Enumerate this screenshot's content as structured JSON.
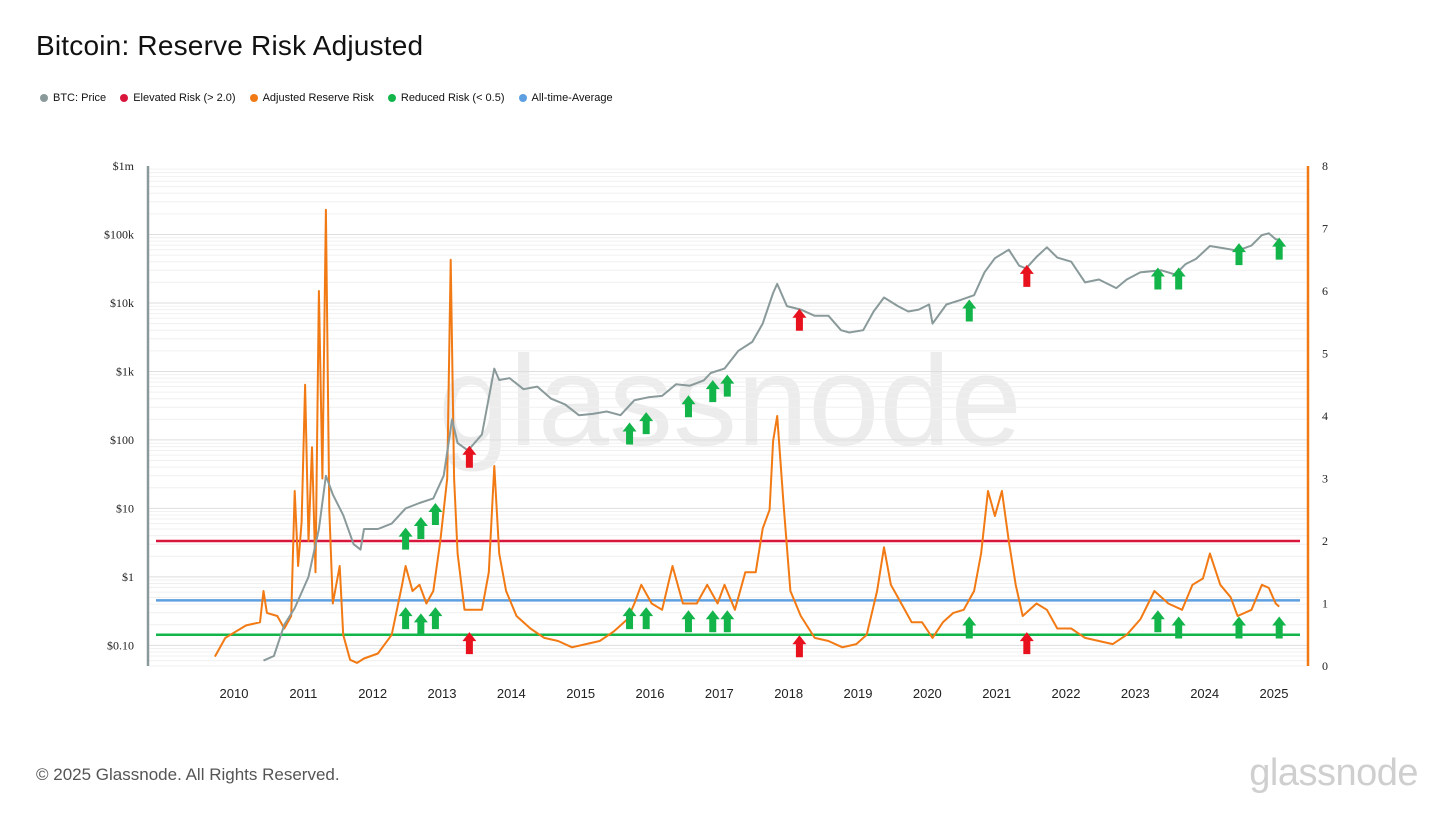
{
  "title": "Bitcoin: Reserve Risk Adjusted",
  "footer": {
    "copyright": "© 2025 Glassnode. All Rights Reserved.",
    "logo": "glassnode"
  },
  "watermark": "glassnode",
  "colors": {
    "price": "#8a9a9a",
    "elevated": "#d9163c",
    "reserve": "#f27a14",
    "reduced": "#13b54b",
    "average": "#5d9fe0",
    "up_arrow": "#13b54b",
    "down_arrow": "#e8121e",
    "grid": "#e8e8e8",
    "watermark": "#ececec"
  },
  "chart_data": {
    "type": "line",
    "title": "Bitcoin: Reserve Risk Adjusted",
    "legend_position": "top-left",
    "legend": [
      {
        "label": "BTC: Price",
        "color": "#8a9a9a"
      },
      {
        "label": "Elevated Risk (> 2.0)",
        "color": "#d9163c"
      },
      {
        "label": "Adjusted Reserve Risk",
        "color": "#f27a14"
      },
      {
        "label": "Reduced Risk (< 0.5)",
        "color": "#13b54b"
      },
      {
        "label": "All-time-Average",
        "color": "#5d9fe0"
      }
    ],
    "x_axis": {
      "scale": "time",
      "range": [
        2009.0,
        2025.5
      ],
      "ticks": [
        2010,
        2011,
        2012,
        2013,
        2014,
        2015,
        2016,
        2017,
        2018,
        2019,
        2020,
        2021,
        2022,
        2023,
        2024,
        2025
      ],
      "tick_labels": [
        "2010",
        "2011",
        "2012",
        "2013",
        "2014",
        "2015",
        "2016",
        "2017",
        "2018",
        "2019",
        "2020",
        "2021",
        "2022",
        "2023",
        "2024",
        "2025"
      ]
    },
    "y_left": {
      "scale": "log",
      "range": [
        0.05,
        1000000
      ],
      "ticks": [
        0.1,
        1,
        10,
        100,
        1000,
        10000,
        100000,
        1000000
      ],
      "tick_labels": [
        "$0.10",
        "$1",
        "$10",
        "$100",
        "$1k",
        "$10k",
        "$100k",
        "$1m"
      ]
    },
    "y_right": {
      "scale": "linear",
      "range": [
        0,
        8
      ],
      "ticks": [
        0,
        1,
        2,
        3,
        4,
        5,
        6,
        7,
        8
      ],
      "tick_labels": [
        "0",
        "1",
        "2",
        "3",
        "4",
        "5",
        "6",
        "7",
        "8"
      ]
    },
    "grid": true,
    "thresholds": [
      {
        "name": "Elevated Risk (> 2.0)",
        "value": 2.0,
        "axis": "right"
      },
      {
        "name": "Reduced Risk (< 0.5)",
        "value": 0.5,
        "axis": "right"
      },
      {
        "name": "All-time-Average",
        "value": 1.05,
        "axis": "right"
      }
    ],
    "series": [
      {
        "name": "BTC: Price",
        "axis": "left",
        "points": [
          [
            2010.55,
            0.06
          ],
          [
            2010.7,
            0.07
          ],
          [
            2010.85,
            0.2
          ],
          [
            2011.0,
            0.35
          ],
          [
            2011.2,
            1.0
          ],
          [
            2011.35,
            5
          ],
          [
            2011.45,
            30
          ],
          [
            2011.55,
            16
          ],
          [
            2011.7,
            8
          ],
          [
            2011.85,
            3
          ],
          [
            2011.95,
            2.5
          ],
          [
            2012.0,
            5
          ],
          [
            2012.2,
            5
          ],
          [
            2012.4,
            6
          ],
          [
            2012.6,
            10
          ],
          [
            2012.8,
            12
          ],
          [
            2013.0,
            14
          ],
          [
            2013.15,
            30
          ],
          [
            2013.27,
            200
          ],
          [
            2013.35,
            90
          ],
          [
            2013.5,
            70
          ],
          [
            2013.7,
            120
          ],
          [
            2013.88,
            1100
          ],
          [
            2013.95,
            750
          ],
          [
            2014.1,
            800
          ],
          [
            2014.3,
            550
          ],
          [
            2014.5,
            600
          ],
          [
            2014.7,
            400
          ],
          [
            2014.9,
            330
          ],
          [
            2015.1,
            230
          ],
          [
            2015.3,
            240
          ],
          [
            2015.5,
            260
          ],
          [
            2015.7,
            230
          ],
          [
            2015.9,
            380
          ],
          [
            2016.1,
            420
          ],
          [
            2016.3,
            440
          ],
          [
            2016.5,
            650
          ],
          [
            2016.7,
            620
          ],
          [
            2016.9,
            740
          ],
          [
            2017.0,
            950
          ],
          [
            2017.2,
            1100
          ],
          [
            2017.4,
            2000
          ],
          [
            2017.6,
            2700
          ],
          [
            2017.75,
            5000
          ],
          [
            2017.9,
            14000
          ],
          [
            2017.96,
            19000
          ],
          [
            2018.1,
            9000
          ],
          [
            2018.3,
            8000
          ],
          [
            2018.5,
            6500
          ],
          [
            2018.7,
            6500
          ],
          [
            2018.88,
            4000
          ],
          [
            2019.0,
            3700
          ],
          [
            2019.2,
            4000
          ],
          [
            2019.35,
            7500
          ],
          [
            2019.5,
            12000
          ],
          [
            2019.7,
            9000
          ],
          [
            2019.85,
            7500
          ],
          [
            2020.0,
            8000
          ],
          [
            2020.15,
            9500
          ],
          [
            2020.2,
            5000
          ],
          [
            2020.4,
            9500
          ],
          [
            2020.6,
            11000
          ],
          [
            2020.8,
            13000
          ],
          [
            2020.95,
            28000
          ],
          [
            2021.1,
            45000
          ],
          [
            2021.3,
            60000
          ],
          [
            2021.45,
            35000
          ],
          [
            2021.55,
            32000
          ],
          [
            2021.7,
            47000
          ],
          [
            2021.85,
            65000
          ],
          [
            2022.0,
            46000
          ],
          [
            2022.2,
            40000
          ],
          [
            2022.4,
            20000
          ],
          [
            2022.6,
            22000
          ],
          [
            2022.85,
            16500
          ],
          [
            2023.0,
            22000
          ],
          [
            2023.2,
            28000
          ],
          [
            2023.5,
            30000
          ],
          [
            2023.7,
            26000
          ],
          [
            2023.85,
            37000
          ],
          [
            2024.0,
            44000
          ],
          [
            2024.2,
            68000
          ],
          [
            2024.4,
            63000
          ],
          [
            2024.6,
            58000
          ],
          [
            2024.8,
            69000
          ],
          [
            2024.95,
            98000
          ],
          [
            2025.05,
            104000
          ],
          [
            2025.15,
            85000
          ],
          [
            2025.2,
            84000
          ]
        ]
      },
      {
        "name": "Adjusted Reserve Risk",
        "axis": "right",
        "points": [
          [
            2009.85,
            0.15
          ],
          [
            2010.0,
            0.45
          ],
          [
            2010.3,
            0.65
          ],
          [
            2010.5,
            0.7
          ],
          [
            2010.55,
            1.2
          ],
          [
            2010.6,
            0.85
          ],
          [
            2010.75,
            0.8
          ],
          [
            2010.85,
            0.6
          ],
          [
            2010.95,
            0.8
          ],
          [
            2011.0,
            2.8
          ],
          [
            2011.05,
            1.6
          ],
          [
            2011.1,
            2.3
          ],
          [
            2011.15,
            4.5
          ],
          [
            2011.2,
            2.0
          ],
          [
            2011.25,
            3.5
          ],
          [
            2011.3,
            1.5
          ],
          [
            2011.35,
            6.0
          ],
          [
            2011.4,
            3.0
          ],
          [
            2011.45,
            7.3
          ],
          [
            2011.5,
            2.5
          ],
          [
            2011.55,
            1.0
          ],
          [
            2011.65,
            1.6
          ],
          [
            2011.7,
            0.5
          ],
          [
            2011.8,
            0.1
          ],
          [
            2011.9,
            0.05
          ],
          [
            2012.0,
            0.12
          ],
          [
            2012.2,
            0.2
          ],
          [
            2012.4,
            0.5
          ],
          [
            2012.55,
            1.3
          ],
          [
            2012.6,
            1.6
          ],
          [
            2012.7,
            1.2
          ],
          [
            2012.8,
            1.3
          ],
          [
            2012.9,
            1.0
          ],
          [
            2013.0,
            1.2
          ],
          [
            2013.1,
            2.0
          ],
          [
            2013.2,
            3.0
          ],
          [
            2013.25,
            6.5
          ],
          [
            2013.3,
            3.0
          ],
          [
            2013.35,
            1.8
          ],
          [
            2013.45,
            0.9
          ],
          [
            2013.55,
            0.9
          ],
          [
            2013.7,
            0.9
          ],
          [
            2013.8,
            1.5
          ],
          [
            2013.88,
            3.2
          ],
          [
            2013.95,
            1.8
          ],
          [
            2014.05,
            1.2
          ],
          [
            2014.2,
            0.8
          ],
          [
            2014.4,
            0.6
          ],
          [
            2014.6,
            0.45
          ],
          [
            2014.8,
            0.4
          ],
          [
            2015.0,
            0.3
          ],
          [
            2015.2,
            0.35
          ],
          [
            2015.4,
            0.4
          ],
          [
            2015.6,
            0.55
          ],
          [
            2015.8,
            0.75
          ],
          [
            2015.9,
            1.0
          ],
          [
            2016.0,
            1.3
          ],
          [
            2016.15,
            1.0
          ],
          [
            2016.3,
            0.9
          ],
          [
            2016.45,
            1.6
          ],
          [
            2016.6,
            1.0
          ],
          [
            2016.8,
            1.0
          ],
          [
            2016.95,
            1.3
          ],
          [
            2017.1,
            1.0
          ],
          [
            2017.2,
            1.3
          ],
          [
            2017.35,
            0.9
          ],
          [
            2017.5,
            1.5
          ],
          [
            2017.65,
            1.5
          ],
          [
            2017.75,
            2.2
          ],
          [
            2017.85,
            2.5
          ],
          [
            2017.9,
            3.6
          ],
          [
            2017.96,
            4.0
          ],
          [
            2018.05,
            2.6
          ],
          [
            2018.15,
            1.2
          ],
          [
            2018.3,
            0.8
          ],
          [
            2018.5,
            0.45
          ],
          [
            2018.7,
            0.4
          ],
          [
            2018.9,
            0.3
          ],
          [
            2019.1,
            0.35
          ],
          [
            2019.25,
            0.5
          ],
          [
            2019.4,
            1.2
          ],
          [
            2019.5,
            1.9
          ],
          [
            2019.6,
            1.3
          ],
          [
            2019.75,
            1.0
          ],
          [
            2019.9,
            0.7
          ],
          [
            2020.05,
            0.7
          ],
          [
            2020.2,
            0.45
          ],
          [
            2020.35,
            0.7
          ],
          [
            2020.5,
            0.85
          ],
          [
            2020.65,
            0.9
          ],
          [
            2020.8,
            1.2
          ],
          [
            2020.9,
            1.8
          ],
          [
            2021.0,
            2.8
          ],
          [
            2021.1,
            2.4
          ],
          [
            2021.2,
            2.8
          ],
          [
            2021.3,
            2.0
          ],
          [
            2021.4,
            1.3
          ],
          [
            2021.5,
            0.8
          ],
          [
            2021.7,
            1.0
          ],
          [
            2021.85,
            0.9
          ],
          [
            2022.0,
            0.6
          ],
          [
            2022.2,
            0.6
          ],
          [
            2022.4,
            0.45
          ],
          [
            2022.6,
            0.4
          ],
          [
            2022.8,
            0.35
          ],
          [
            2023.0,
            0.5
          ],
          [
            2023.2,
            0.75
          ],
          [
            2023.4,
            1.2
          ],
          [
            2023.6,
            1.0
          ],
          [
            2023.8,
            0.9
          ],
          [
            2023.95,
            1.3
          ],
          [
            2024.1,
            1.4
          ],
          [
            2024.2,
            1.8
          ],
          [
            2024.35,
            1.3
          ],
          [
            2024.5,
            1.1
          ],
          [
            2024.6,
            0.8
          ],
          [
            2024.8,
            0.9
          ],
          [
            2024.95,
            1.3
          ],
          [
            2025.05,
            1.25
          ],
          [
            2025.15,
            1.0
          ],
          [
            2025.2,
            0.95
          ]
        ]
      }
    ],
    "annotations": [
      {
        "type": "up-arrow",
        "x": 2012.6,
        "axis": "left",
        "y": 3.5
      },
      {
        "type": "up-arrow",
        "x": 2012.82,
        "axis": "left",
        "y": 5
      },
      {
        "type": "up-arrow",
        "x": 2013.03,
        "axis": "left",
        "y": 8
      },
      {
        "type": "down-arrow",
        "x": 2013.52,
        "axis": "left",
        "y": 55
      },
      {
        "type": "up-arrow",
        "x": 2015.83,
        "axis": "left",
        "y": 120
      },
      {
        "type": "up-arrow",
        "x": 2016.07,
        "axis": "left",
        "y": 170
      },
      {
        "type": "up-arrow",
        "x": 2016.68,
        "axis": "left",
        "y": 300
      },
      {
        "type": "up-arrow",
        "x": 2017.03,
        "axis": "left",
        "y": 500
      },
      {
        "type": "up-arrow",
        "x": 2017.24,
        "axis": "left",
        "y": 600
      },
      {
        "type": "down-arrow",
        "x": 2018.28,
        "axis": "left",
        "y": 5500
      },
      {
        "type": "up-arrow",
        "x": 2020.73,
        "axis": "left",
        "y": 7500
      },
      {
        "type": "down-arrow",
        "x": 2021.56,
        "axis": "left",
        "y": 24000
      },
      {
        "type": "up-arrow",
        "x": 2023.45,
        "axis": "left",
        "y": 22000
      },
      {
        "type": "up-arrow",
        "x": 2023.75,
        "axis": "left",
        "y": 22000
      },
      {
        "type": "up-arrow",
        "x": 2024.62,
        "axis": "left",
        "y": 50000
      },
      {
        "type": "up-arrow",
        "x": 2025.2,
        "axis": "left",
        "y": 60000
      },
      {
        "type": "up-arrow",
        "x": 2012.6,
        "axis": "right",
        "y": 0.75
      },
      {
        "type": "up-arrow",
        "x": 2012.82,
        "axis": "right",
        "y": 0.65
      },
      {
        "type": "up-arrow",
        "x": 2013.03,
        "axis": "right",
        "y": 0.75
      },
      {
        "type": "down-arrow",
        "x": 2013.52,
        "axis": "right",
        "y": 0.35
      },
      {
        "type": "up-arrow",
        "x": 2015.83,
        "axis": "right",
        "y": 0.75
      },
      {
        "type": "up-arrow",
        "x": 2016.07,
        "axis": "right",
        "y": 0.75
      },
      {
        "type": "up-arrow",
        "x": 2016.68,
        "axis": "right",
        "y": 0.7
      },
      {
        "type": "up-arrow",
        "x": 2017.03,
        "axis": "right",
        "y": 0.7
      },
      {
        "type": "up-arrow",
        "x": 2017.24,
        "axis": "right",
        "y": 0.7
      },
      {
        "type": "down-arrow",
        "x": 2018.28,
        "axis": "right",
        "y": 0.3
      },
      {
        "type": "up-arrow",
        "x": 2020.73,
        "axis": "right",
        "y": 0.6
      },
      {
        "type": "down-arrow",
        "x": 2021.56,
        "axis": "right",
        "y": 0.35
      },
      {
        "type": "up-arrow",
        "x": 2023.45,
        "axis": "right",
        "y": 0.7
      },
      {
        "type": "up-arrow",
        "x": 2023.75,
        "axis": "right",
        "y": 0.6
      },
      {
        "type": "up-arrow",
        "x": 2024.62,
        "axis": "right",
        "y": 0.6
      },
      {
        "type": "up-arrow",
        "x": 2025.2,
        "axis": "right",
        "y": 0.6
      }
    ]
  }
}
